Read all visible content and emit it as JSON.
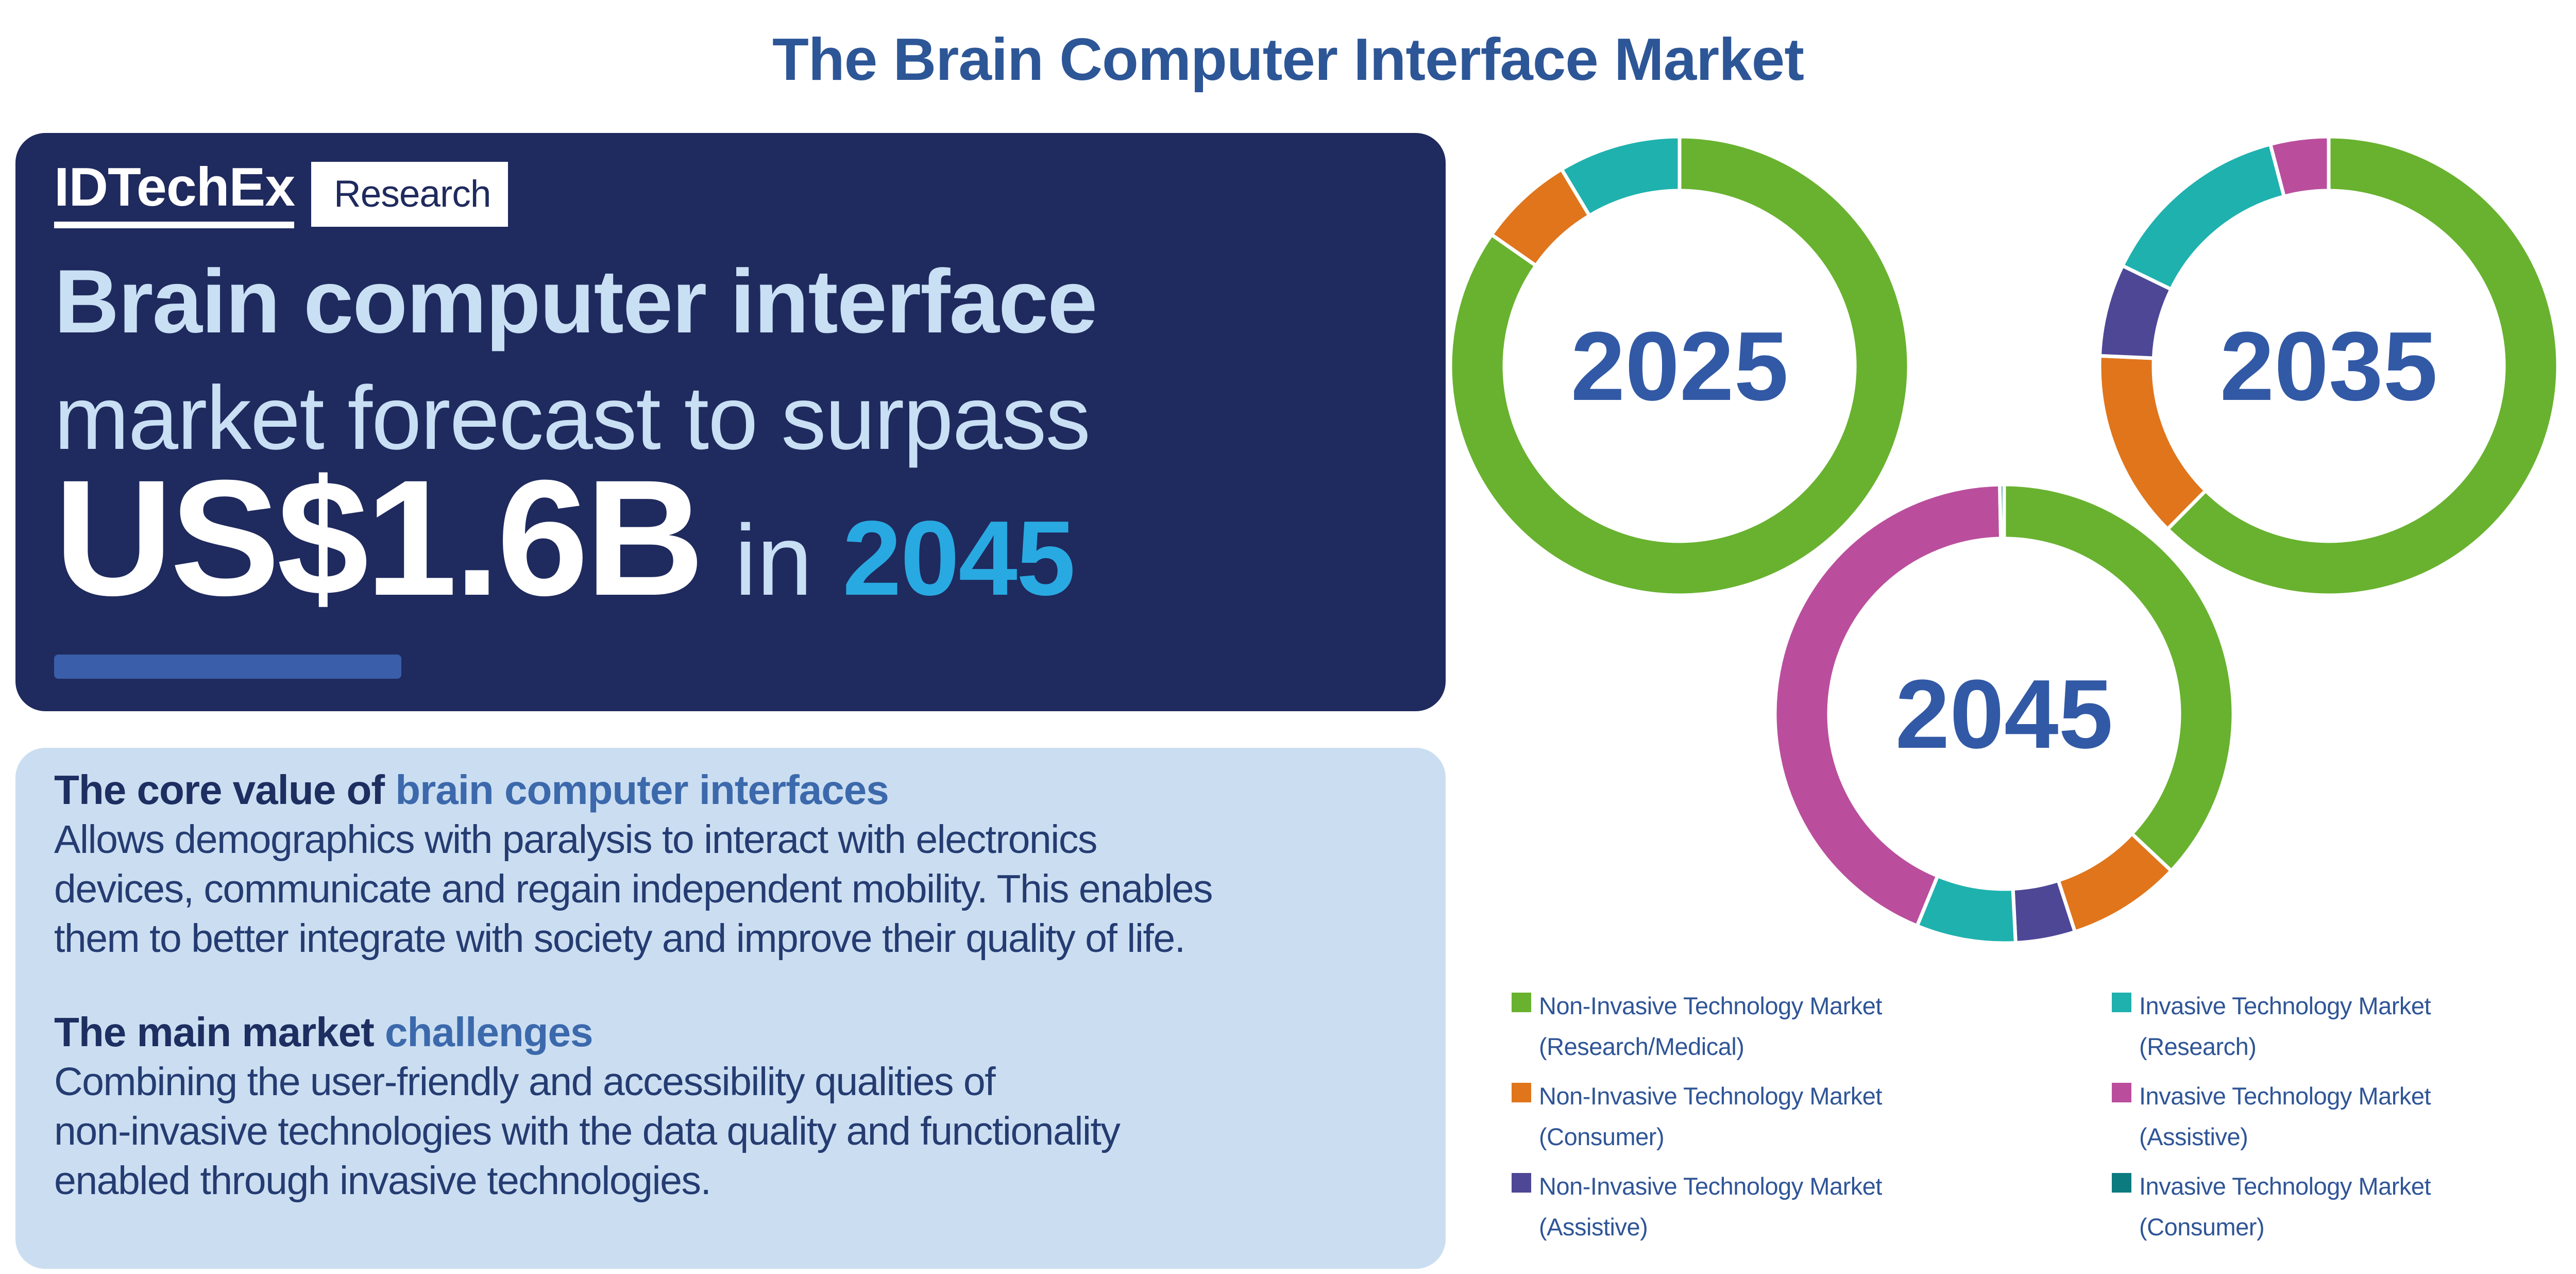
{
  "title": "The Brain Computer Interface Market",
  "hero": {
    "brand": "IDTechEx",
    "brand_sub": "Research",
    "headline_bold": "Brain computer interface",
    "headline_light": "market forecast to surpass",
    "amount": "US$1.6B",
    "in_word": "in",
    "year": "2045"
  },
  "info": {
    "h1_dark": "The core value of",
    "h1_blue": "brain computer interfaces",
    "p1_lines": [
      "Allows demographics with paralysis to interact with electronics",
      "devices, communicate and regain independent mobility. This enables",
      "them to better integrate with society and improve their quality of life."
    ],
    "h2_dark": "The main market",
    "h2_blue": "challenges",
    "p2_lines": [
      "Combining the user-friendly and accessibility qualities of",
      "non-invasive technologies with the data quality and functionality",
      "enabled through invasive technologies."
    ]
  },
  "legend": {
    "items": [
      {
        "color_key": "green",
        "line1": "Non-Invasive Technology Market",
        "line2": "(Research/Medical)"
      },
      {
        "color_key": "orange",
        "line1": "Non-Invasive Technology Market",
        "line2": "(Consumer)"
      },
      {
        "color_key": "purple",
        "line1": "Non-Invasive Technology Market",
        "line2": "(Assistive)"
      },
      {
        "color_key": "teal",
        "line1": "Invasive Technology Market",
        "line2": "(Research)"
      },
      {
        "color_key": "magenta",
        "line1": "Invasive Technology Market",
        "line2": "(Assistive)"
      },
      {
        "color_key": "darkteal",
        "line1": "Invasive Technology Market",
        "line2": "(Consumer)"
      }
    ]
  },
  "chart_data": [
    {
      "type": "pie",
      "subtype": "donut",
      "year": "2025",
      "title": "BCI market share by segment, 2025 (estimated from figure, %)",
      "legend_position": "bottom",
      "segments": [
        {
          "label": "Non-Invasive Technology Market (Research/Medical)",
          "color_key": "green",
          "percent": 84.7
        },
        {
          "label": "Non-Invasive Technology Market (Consumer)",
          "color_key": "orange",
          "percent": 6.7
        },
        {
          "label": "Invasive Technology Market (Research)",
          "color_key": "teal",
          "percent": 8.6
        }
      ]
    },
    {
      "type": "pie",
      "subtype": "donut",
      "year": "2035",
      "title": "BCI market share by segment, 2035 (estimated from figure, %)",
      "legend_position": "bottom",
      "segments": [
        {
          "label": "Non-Invasive Technology Market (Research/Medical)",
          "color_key": "green",
          "percent": 62.4
        },
        {
          "label": "Non-Invasive Technology Market (Consumer)",
          "color_key": "orange",
          "percent": 13.3
        },
        {
          "label": "Non-Invasive Technology Market (Assistive)",
          "color_key": "purple",
          "percent": 6.5
        },
        {
          "label": "Invasive Technology Market (Research)",
          "color_key": "teal",
          "percent": 13.7
        },
        {
          "label": "Invasive Technology Market (Assistive)",
          "color_key": "magenta",
          "percent": 4.1
        }
      ]
    },
    {
      "type": "pie",
      "subtype": "donut",
      "year": "2045",
      "title": "BCI market share by segment, 2045 (estimated from figure, %)",
      "legend_position": "bottom",
      "segments": [
        {
          "label": "Non-Invasive Technology Market (Research/Medical)",
          "color_key": "green",
          "percent": 37.0
        },
        {
          "label": "Non-Invasive Technology Market (Consumer)",
          "color_key": "orange",
          "percent": 8.0
        },
        {
          "label": "Non-Invasive Technology Market (Assistive)",
          "color_key": "purple",
          "percent": 4.2
        },
        {
          "label": "Invasive Technology Market (Research)",
          "color_key": "teal",
          "percent": 7.0
        },
        {
          "label": "Invasive Technology Market (Assistive)",
          "color_key": "magenta",
          "percent": 43.5
        },
        {
          "label": "Invasive Technology Market (Consumer)",
          "color_key": "darkteal",
          "percent": 0.3
        }
      ]
    }
  ],
  "colors": {
    "navy": "#1F2A5E",
    "panel-blue": "#CBDEF1",
    "light-text": "#C9DFF4",
    "cyan": "#29A9E1",
    "bar-blue": "#3A5EA9",
    "title-blue": "#2D5697",
    "year-blue": "#3259A5",
    "heading-dark": "#1D2E61",
    "heading-blue": "#3C69AC",
    "body-text": "#253C72",
    "legend-text": "#2F5597",
    "green": "#68B22F",
    "orange": "#E0751C",
    "teal": "#1FB1AE",
    "purple": "#4E4796",
    "magenta": "#BA4E9D",
    "darkteal": "#0B7B80"
  }
}
